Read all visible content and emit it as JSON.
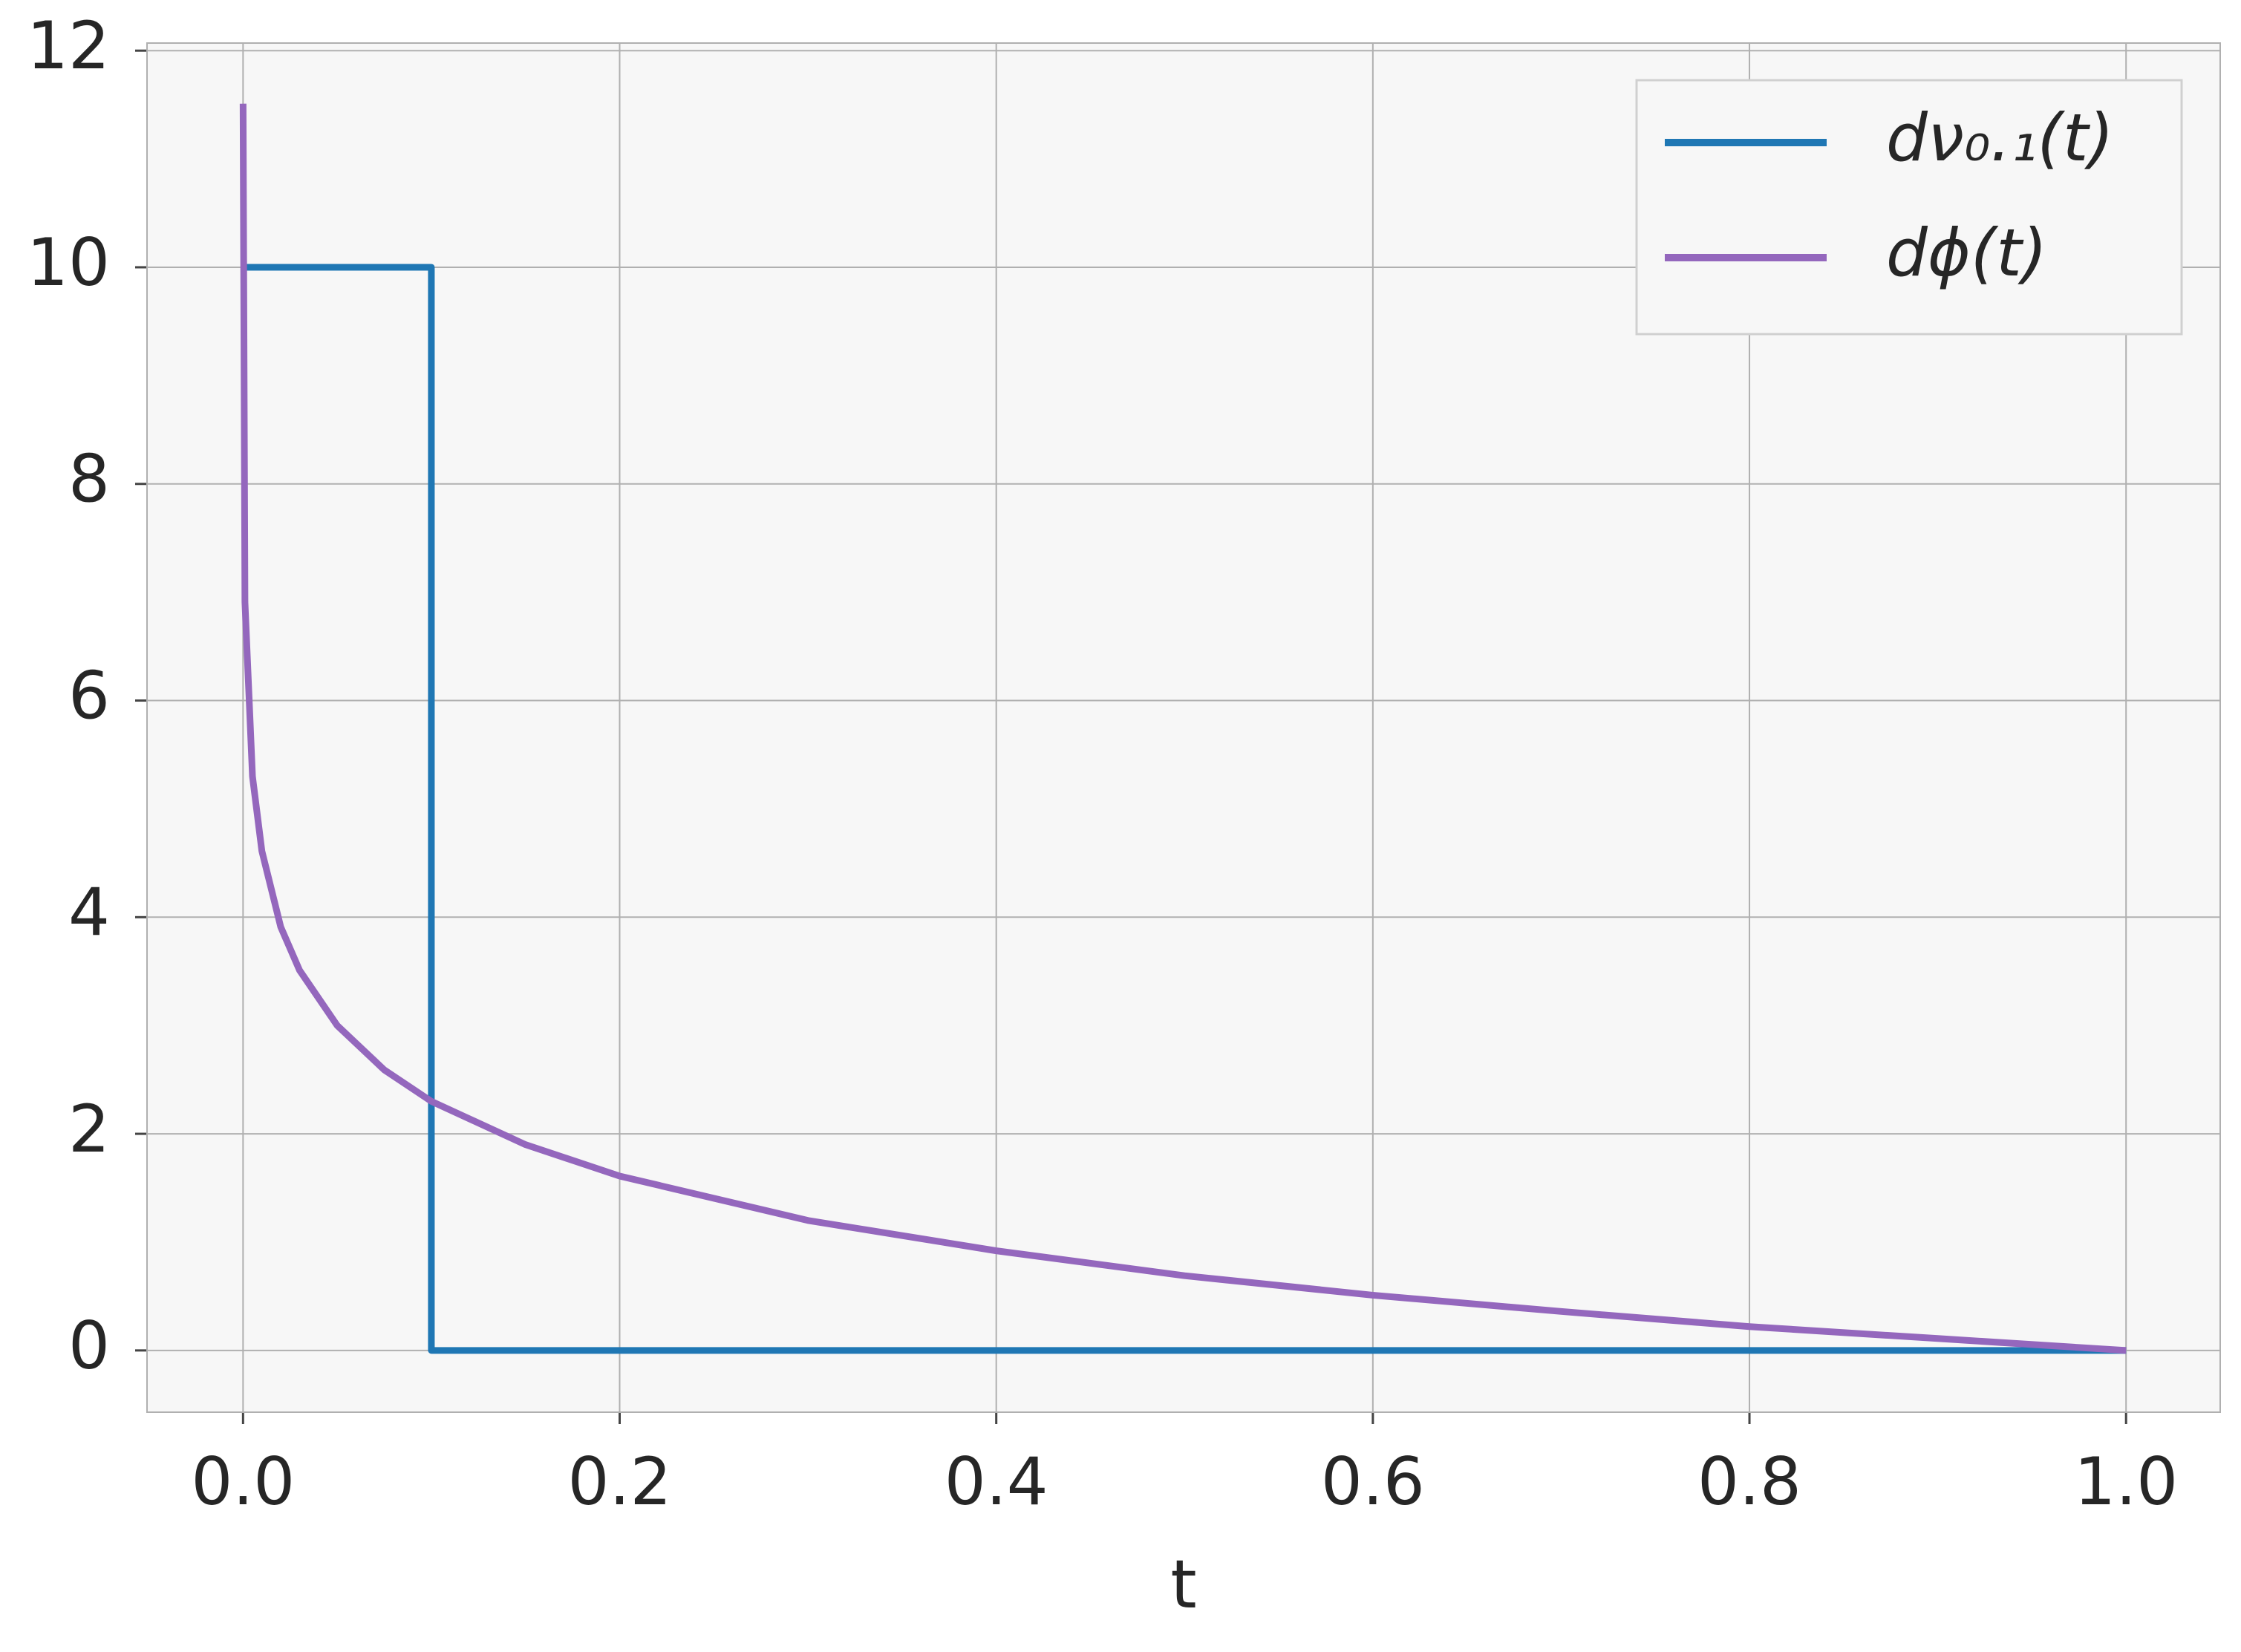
{
  "chart_data": {
    "type": "line",
    "x_label": "t",
    "xlim": [
      -0.051,
      1.05
    ],
    "ylim": [
      -0.57,
      12.07
    ],
    "xticks": [
      {
        "value": 0,
        "label": "0.0"
      },
      {
        "value": 0.2,
        "label": "0.2"
      },
      {
        "value": 0.4,
        "label": "0.4"
      },
      {
        "value": 0.6,
        "label": "0.6"
      },
      {
        "value": 0.8,
        "label": "0.8"
      },
      {
        "value": 1,
        "label": "1.0"
      }
    ],
    "yticks": [
      0,
      2,
      4,
      6,
      8,
      10,
      12
    ],
    "grid": true,
    "legend": "upper right",
    "series": [
      {
        "name": "dν₀.₁(t)",
        "color": "#1f77b4",
        "x": [
          0,
          0.1,
          0.1,
          1.0
        ],
        "values": [
          10,
          10,
          0,
          0
        ]
      },
      {
        "name": "dϕ(t)",
        "color": "#9467bd",
        "x": [
          1e-05,
          0.001,
          0.005,
          0.01,
          0.02,
          0.03,
          0.05,
          0.075,
          0.1,
          0.15,
          0.2,
          0.3,
          0.4,
          0.5,
          0.6,
          0.7,
          0.8,
          0.9,
          1.0
        ],
        "values": [
          11.51,
          6.91,
          5.3,
          4.61,
          3.91,
          3.51,
          3.0,
          2.59,
          2.3,
          1.9,
          1.61,
          1.2,
          0.92,
          0.69,
          0.51,
          0.36,
          0.22,
          0.11,
          0
        ]
      }
    ]
  }
}
